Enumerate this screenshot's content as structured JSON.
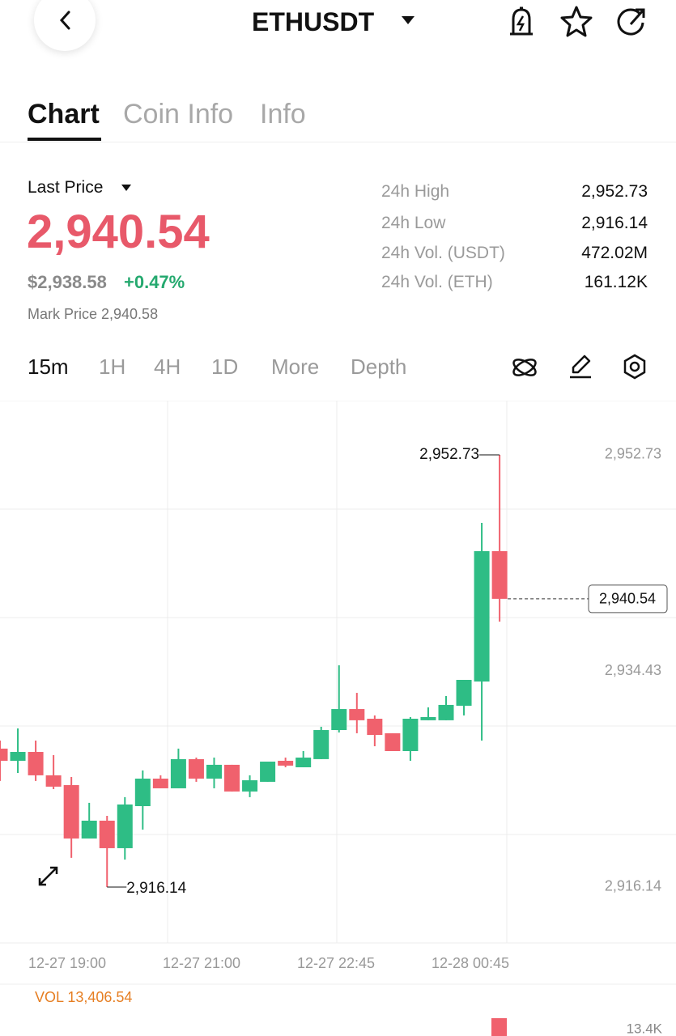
{
  "header": {
    "title": "ETHUSDT"
  },
  "tabs": [
    "Chart",
    "Coin Info",
    "Info"
  ],
  "price": {
    "label": "Last Price",
    "last": "2,940.54",
    "usd": "$2,938.58",
    "change": "+0.47%",
    "mark": "Mark Price 2,940.58"
  },
  "stats": {
    "rows": [
      [
        "24h High",
        "2,952.73"
      ],
      [
        "24h Low",
        "2,916.14"
      ],
      [
        "24h Vol. (USDT)",
        "472.02M"
      ],
      [
        "24h Vol. (ETH)",
        "161.12K"
      ]
    ]
  },
  "intervals": [
    "15m",
    "1H",
    "4H",
    "1D",
    "More",
    "Depth"
  ],
  "chart_data": {
    "type": "candlestick",
    "open": [
      2927.86,
      2926.83,
      2927.58,
      2925.6,
      2924.77,
      2920.25,
      2921.76,
      2919.43,
      2922.99,
      2925.32,
      2924.5,
      2926.97,
      2925.32,
      2926.49,
      2924.23,
      2925.05,
      2926.83,
      2926.28,
      2926.97,
      2929.43,
      2931.21,
      2930.39,
      2929.16,
      2927.65,
      2930.26,
      2930.26,
      2931.49,
      2933.54,
      2944.58
    ],
    "high": [
      2928.54,
      2929.57,
      2928.54,
      2927.31,
      2925.46,
      2923.27,
      2922.17,
      2923.75,
      2926.01,
      2925.6,
      2927.86,
      2927.1,
      2927.1,
      2926.49,
      2925.6,
      2926.76,
      2927.1,
      2927.65,
      2929.71,
      2934.91,
      2932.58,
      2930.67,
      2929.16,
      2930.53,
      2931.35,
      2932.31,
      2933.68,
      2946.97,
      2952.73
    ],
    "low": [
      2925.12,
      2925.8,
      2925.12,
      2924.43,
      2918.61,
      2920.25,
      2916.14,
      2918.47,
      2921.0,
      2924.5,
      2924.5,
      2925.05,
      2924.5,
      2924.23,
      2923.75,
      2925.05,
      2926.28,
      2926.28,
      2926.97,
      2929.23,
      2929.16,
      2928.06,
      2927.65,
      2926.83,
      2930.26,
      2930.26,
      2930.67,
      2928.54,
      2938.61
    ],
    "close": [
      2926.83,
      2927.58,
      2925.6,
      2924.64,
      2920.25,
      2921.76,
      2919.43,
      2923.13,
      2925.32,
      2924.5,
      2926.97,
      2925.32,
      2926.49,
      2924.23,
      2925.18,
      2926.76,
      2926.42,
      2927.1,
      2929.43,
      2931.21,
      2930.26,
      2929.02,
      2927.65,
      2930.39,
      2930.53,
      2931.56,
      2933.68,
      2944.58,
      2940.54
    ],
    "up_color": "#2ebd85",
    "down_color": "#f0616d",
    "ylim": [
      2911.41,
      2957.32
    ],
    "yticks": [
      {
        "value": 2916.14,
        "label": "2,916.14"
      },
      {
        "value": 2934.43,
        "label": "2,934.43"
      },
      {
        "value": 2952.73,
        "label": "2,952.73"
      }
    ],
    "x_labels": [
      "12-27 19:00",
      "12-27 21:00",
      "12-27 22:45",
      "12-28 00:45"
    ],
    "high_marker": {
      "value": 2952.73,
      "label": "2,952.73"
    },
    "low_marker": {
      "value": 2916.14,
      "label": "2,916.14"
    },
    "last_marker": {
      "value": 2940.54,
      "label": "2,940.54"
    },
    "volume_label": "VOL 13,406.54",
    "volume_axis_label": "13.4K"
  }
}
